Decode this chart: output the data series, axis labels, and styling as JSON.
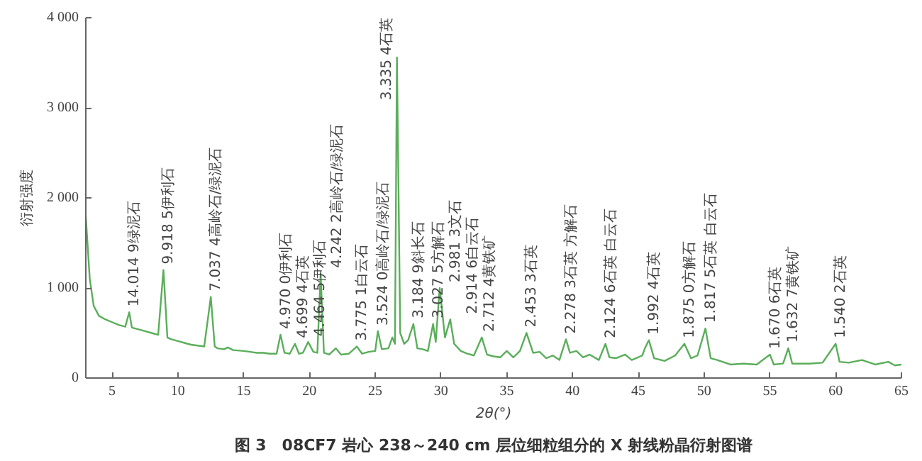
{
  "chart_data": {
    "type": "line",
    "title": "图 3　08CF7 岩心 238～240 cm 层位细粒组分的 X 射线粉晶衍射图谱",
    "xlabel": "2θ(°)",
    "ylabel": "衍射强度",
    "xlim": [
      3,
      65
    ],
    "ylim": [
      0,
      4000
    ],
    "xticks": [
      5,
      10,
      15,
      20,
      25,
      30,
      35,
      40,
      45,
      50,
      55,
      60,
      65
    ],
    "yticks": [
      0,
      {
        "value": 1000,
        "label": "1 000"
      },
      {
        "value": 2000,
        "label": "2 000"
      },
      {
        "value": 3000,
        "label": "3 000"
      },
      {
        "value": 4000,
        "label": "4 000"
      }
    ],
    "grid": false,
    "marker": "none",
    "line_style": "solid",
    "series": [
      {
        "color": "#5aae5a",
        "x": [
          3.0,
          3.3,
          3.6,
          4.0,
          4.5,
          5.0,
          5.5,
          6.0,
          6.3,
          6.5,
          7.0,
          7.5,
          8.0,
          8.5,
          8.9,
          9.2,
          9.5,
          10.0,
          10.5,
          11.0,
          11.5,
          12.0,
          12.5,
          12.8,
          13.0,
          13.5,
          13.8,
          14.2,
          15.0,
          15.5,
          16.0,
          16.5,
          17.0,
          17.5,
          17.8,
          18.1,
          18.5,
          18.9,
          19.2,
          19.5,
          19.9,
          20.3,
          20.6,
          20.85,
          21.1,
          21.5,
          22.0,
          22.4,
          23.0,
          23.6,
          24.0,
          24.5,
          25.0,
          25.2,
          25.5,
          26.0,
          26.3,
          26.5,
          26.65,
          26.9,
          27.2,
          27.5,
          27.9,
          28.2,
          28.6,
          29.0,
          29.4,
          29.6,
          29.9,
          30.3,
          30.7,
          31.0,
          31.5,
          32.0,
          32.5,
          33.1,
          33.5,
          34.0,
          34.5,
          35.0,
          35.5,
          36.0,
          36.5,
          37.0,
          37.5,
          38.0,
          38.5,
          39.0,
          39.5,
          39.8,
          40.3,
          40.8,
          41.3,
          42.0,
          42.5,
          42.8,
          43.3,
          44.0,
          44.5,
          45.3,
          45.5,
          45.8,
          46.2,
          47.0,
          47.8,
          48.5,
          49.0,
          49.5,
          50.1,
          50.5,
          51.0,
          52.0,
          53.0,
          54.0,
          55.0,
          55.3,
          56.0,
          56.4,
          56.7,
          58.0,
          59.0,
          60.0,
          60.3,
          61.0,
          62.0,
          63.0,
          64.0,
          64.5,
          65.0
        ],
        "values": [
          1790,
          1100,
          800,
          690,
          650,
          620,
          590,
          570,
          730,
          560,
          540,
          520,
          500,
          480,
          1200,
          450,
          430,
          410,
          390,
          370,
          360,
          350,
          900,
          350,
          330,
          320,
          340,
          310,
          300,
          290,
          280,
          280,
          270,
          270,
          480,
          280,
          270,
          380,
          270,
          280,
          400,
          290,
          280,
          1160,
          280,
          260,
          330,
          260,
          270,
          350,
          270,
          290,
          300,
          520,
          320,
          330,
          450,
          380,
          3560,
          500,
          380,
          420,
          600,
          330,
          320,
          300,
          600,
          400,
          1000,
          450,
          650,
          380,
          300,
          270,
          250,
          450,
          260,
          240,
          230,
          300,
          230,
          300,
          500,
          280,
          290,
          220,
          250,
          200,
          430,
          280,
          300,
          230,
          260,
          200,
          380,
          230,
          220,
          260,
          200,
          250,
          330,
          420,
          220,
          190,
          250,
          380,
          220,
          250,
          550,
          220,
          200,
          150,
          160,
          150,
          260,
          150,
          160,
          330,
          160,
          160,
          170,
          380,
          180,
          170,
          200,
          150,
          180,
          140,
          150
        ]
      }
    ],
    "annotations": [
      {
        "text": "14.014 9绿泥石",
        "x": 6.3,
        "y": 730
      },
      {
        "text": "9.918 5伊利石",
        "x": 8.9,
        "y": 1200
      },
      {
        "text": "7.037 4高岭石/绿泥石",
        "x": 12.5,
        "y": 900
      },
      {
        "text": "4.970 0伊利石",
        "x": 17.8,
        "y": 480
      },
      {
        "text": "4.699 4石英",
        "x": 18.9,
        "y": 380
      },
      {
        "text": "4.464 5伊利石",
        "x": 19.9,
        "y": 400
      },
      {
        "text": "4.242 2高岭石/绿泥石",
        "x": 20.85,
        "y": 1160
      },
      {
        "text": "3.775 1白云石",
        "x": 23.6,
        "y": 350
      },
      {
        "text": "3.524 0高岭石/绿泥石",
        "x": 25.2,
        "y": 520
      },
      {
        "text": "3.335 4石英",
        "x": 26.65,
        "y": 3560
      },
      {
        "text": "3.184 9斜长石",
        "x": 27.9,
        "y": 600
      },
      {
        "text": "3.027 5方解石",
        "x": 29.4,
        "y": 600
      },
      {
        "text": "2.981 3文石",
        "x": 29.9,
        "y": 1000
      },
      {
        "text": "2.914 6白云石",
        "x": 30.7,
        "y": 650
      },
      {
        "text": "2.712 4黄铁矿",
        "x": 33.1,
        "y": 450
      },
      {
        "text": "2.453 3石英",
        "x": 36.5,
        "y": 500
      },
      {
        "text": "2.278 3石英  方解石",
        "x": 39.5,
        "y": 430
      },
      {
        "text": "2.124 6石英  白云石",
        "x": 42.5,
        "y": 380
      },
      {
        "text": "1.992 4石英",
        "x": 45.8,
        "y": 420
      },
      {
        "text": "1.875 0方解石",
        "x": 48.5,
        "y": 380
      },
      {
        "text": "1.817 5石英  白云石",
        "x": 50.1,
        "y": 550
      },
      {
        "text": "1.670 6石英",
        "x": 55.0,
        "y": 260
      },
      {
        "text": "1.632 7黄铁矿",
        "x": 56.4,
        "y": 330
      },
      {
        "text": "1.540 2石英",
        "x": 60.0,
        "y": 380
      }
    ]
  }
}
